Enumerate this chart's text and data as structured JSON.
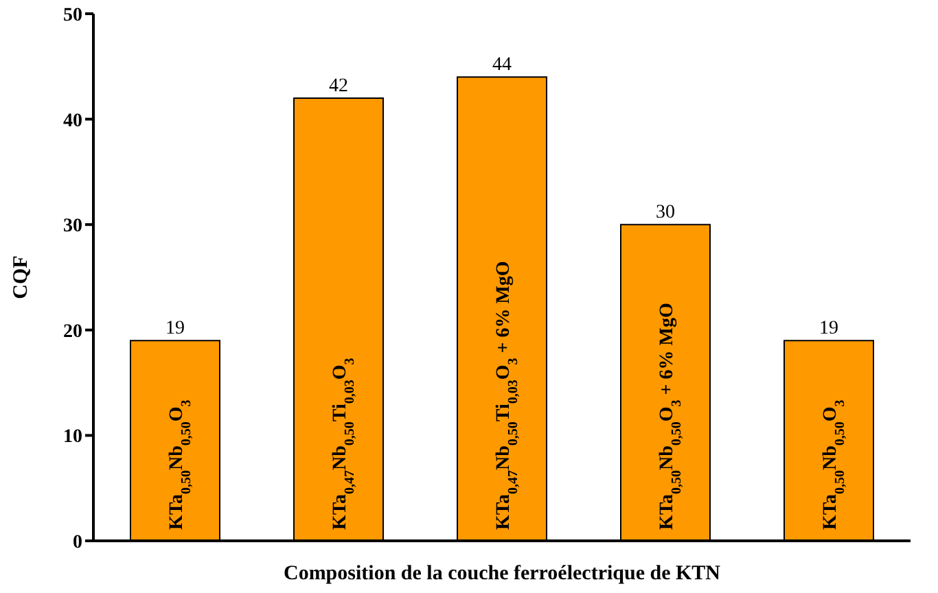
{
  "chart_data": {
    "type": "bar",
    "xlabel": "Composition de la couche ferroélectrique de KTN",
    "ylabel": "CQF",
    "categories": [
      "KTa$_{0,50}$Nb$_{0,50}$O$_{3}$",
      "KTa$_{0,47}$Nb$_{0,50}$Ti$_{0,03}$O$_{3}$",
      "KTa$_{0,47}$Nb$_{0,50}$Ti$_{0,03}$O$_{3}$ + 6% MgO",
      "KTa$_{0,50}$Nb$_{0,50}$O$_{3}$ + 6% MgO",
      "KTa$_{0,50}$Nb$_{0,50}$O$_{3}$"
    ],
    "values": [
      19,
      42,
      44,
      30,
      19
    ],
    "color": "#ff9900",
    "data_labels": true,
    "tick_labels": "y",
    "ylim": [
      0,
      50
    ],
    "yticks": [
      0,
      10,
      20,
      30,
      40,
      50
    ],
    "grid": false,
    "legend": false
  }
}
